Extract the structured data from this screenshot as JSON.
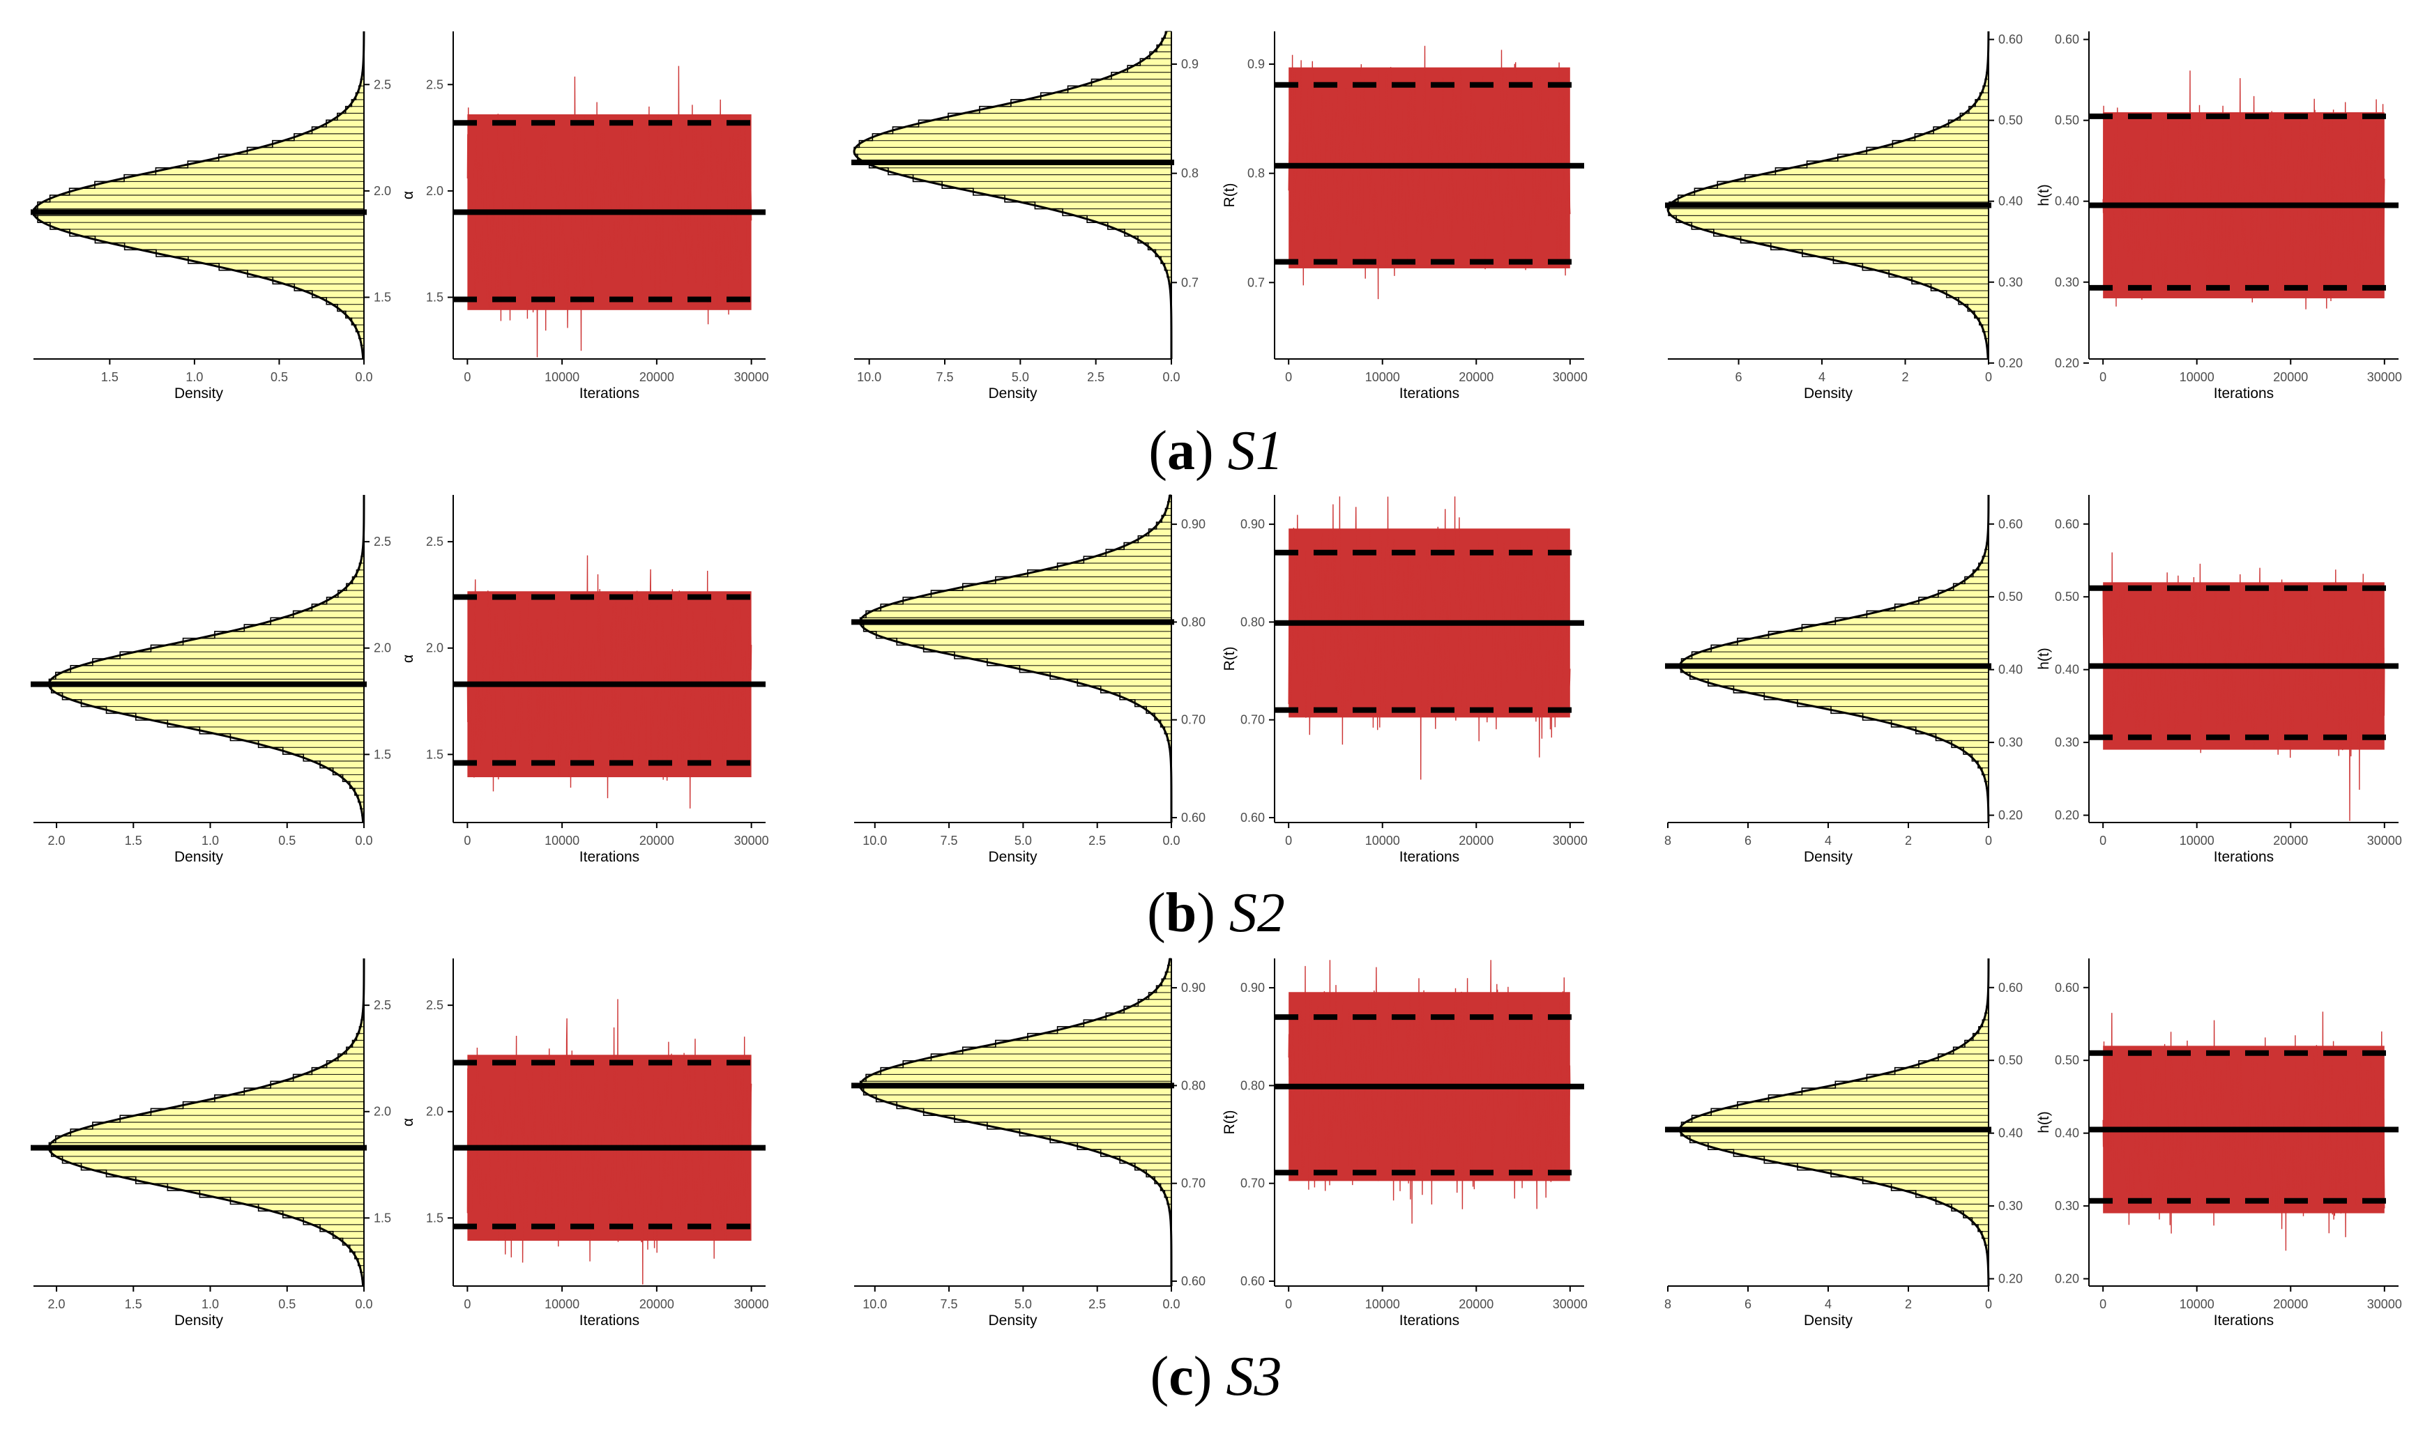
{
  "figure": {
    "captions": [
      {
        "label": "a",
        "scenario": "S1"
      },
      {
        "label": "b",
        "scenario": "S2"
      },
      {
        "label": "c",
        "scenario": "S3"
      }
    ]
  },
  "colors": {
    "histogram_fill": "#FFFFA8",
    "trace_line": "#CC3333",
    "reference_line": "#000000",
    "axis": "#000000"
  },
  "chart_data": [
    {
      "type": "histogram",
      "row": "a",
      "parameter": "alpha",
      "orientation": "horizontal",
      "xlabel": "Density",
      "ylabel": "",
      "ylim": [
        1.21,
        2.75
      ],
      "xlim": [
        1.95,
        0.0
      ],
      "xticks": [
        1.5,
        1.0,
        0.5,
        0.0
      ],
      "yticks": [
        1.5,
        2.0,
        2.5
      ],
      "mode": 1.9,
      "sd": 0.2,
      "peak_density": 1.95,
      "mean": 1.9
    },
    {
      "type": "line",
      "row": "a",
      "parameter": "alpha",
      "xlabel": "Iterations",
      "ylabel": "α",
      "xlim": [
        -1500,
        31500
      ],
      "ylim": [
        1.21,
        2.75
      ],
      "xticks": [
        0,
        10000,
        20000,
        30000
      ],
      "yticks": [
        1.5,
        2.0,
        2.5
      ],
      "center": 1.9,
      "spread": 0.2,
      "n_iterations": 30000,
      "mean": 1.9,
      "lower_bound": 1.49,
      "upper_bound": 2.32
    },
    {
      "type": "histogram",
      "row": "a",
      "parameter": "R(t)",
      "orientation": "horizontal",
      "xlabel": "Density",
      "ylabel": "",
      "ylim": [
        0.63,
        0.93
      ],
      "xlim": [
        10.5,
        0.0
      ],
      "xticks": [
        10.0,
        7.5,
        5.0,
        2.5,
        0.0
      ],
      "yticks": [
        0.7,
        0.8,
        0.9
      ],
      "mode": 0.82,
      "sd": 0.038,
      "peak_density": 10.5,
      "mean": 0.81
    },
    {
      "type": "line",
      "row": "a",
      "parameter": "R(t)",
      "xlabel": "Iterations",
      "ylabel": "R(t)",
      "xlim": [
        -1500,
        31500
      ],
      "ylim": [
        0.63,
        0.93
      ],
      "xticks": [
        0,
        10000,
        20000,
        30000
      ],
      "yticks": [
        0.7,
        0.8,
        0.9
      ],
      "center": 0.805,
      "spread": 0.04,
      "n_iterations": 30000,
      "mean": 0.807,
      "lower_bound": 0.719,
      "upper_bound": 0.881
    },
    {
      "type": "histogram",
      "row": "a",
      "parameter": "h(t)",
      "orientation": "horizontal",
      "xlabel": "Density",
      "ylabel": "",
      "ylim": [
        0.205,
        0.61
      ],
      "xlim": [
        7.7,
        0.0
      ],
      "xticks": [
        6,
        4,
        2,
        0
      ],
      "yticks": [
        0.2,
        0.3,
        0.4,
        0.5,
        0.6
      ],
      "mode": 0.39,
      "sd": 0.052,
      "peak_density": 7.7,
      "mean": 0.395
    },
    {
      "type": "line",
      "row": "a",
      "parameter": "h(t)",
      "xlabel": "Iterations",
      "ylabel": "h(t)",
      "xlim": [
        -1500,
        31500
      ],
      "ylim": [
        0.205,
        0.61
      ],
      "xticks": [
        0,
        10000,
        20000,
        30000
      ],
      "yticks": [
        0.2,
        0.3,
        0.4,
        0.5,
        0.6
      ],
      "center": 0.395,
      "spread": 0.05,
      "n_iterations": 30000,
      "mean": 0.395,
      "lower_bound": 0.293,
      "upper_bound": 0.505
    },
    {
      "type": "histogram",
      "row": "b",
      "parameter": "alpha",
      "orientation": "horizontal",
      "xlabel": "Density",
      "ylabel": "",
      "ylim": [
        1.18,
        2.72
      ],
      "xlim": [
        2.15,
        0.0
      ],
      "xticks": [
        2.0,
        1.5,
        1.0,
        0.5,
        0.0
      ],
      "yticks": [
        1.5,
        2.0,
        2.5
      ],
      "mode": 1.83,
      "sd": 0.19,
      "peak_density": 2.05,
      "mean": 1.83
    },
    {
      "type": "line",
      "row": "b",
      "parameter": "alpha",
      "xlabel": "Iterations",
      "ylabel": "α",
      "xlim": [
        -1500,
        31500
      ],
      "ylim": [
        1.18,
        2.72
      ],
      "xticks": [
        0,
        10000,
        20000,
        30000
      ],
      "yticks": [
        1.5,
        2.0,
        2.5
      ],
      "center": 1.83,
      "spread": 0.19,
      "n_iterations": 30000,
      "mean": 1.83,
      "lower_bound": 1.46,
      "upper_bound": 2.24
    },
    {
      "type": "histogram",
      "row": "b",
      "parameter": "R(t)",
      "orientation": "horizontal",
      "xlabel": "Density",
      "ylabel": "",
      "ylim": [
        0.595,
        0.93
      ],
      "xlim": [
        10.7,
        0.0
      ],
      "xticks": [
        10.0,
        7.5,
        5.0,
        2.5,
        0.0
      ],
      "yticks": [
        0.6,
        0.7,
        0.8,
        0.9
      ],
      "mode": 0.8,
      "sd": 0.04,
      "peak_density": 10.5,
      "mean": 0.8
    },
    {
      "type": "line",
      "row": "b",
      "parameter": "R(t)",
      "xlabel": "Iterations",
      "ylabel": "R(t)",
      "xlim": [
        -1500,
        31500
      ],
      "ylim": [
        0.595,
        0.93
      ],
      "xticks": [
        0,
        10000,
        20000,
        30000
      ],
      "yticks": [
        0.6,
        0.7,
        0.8,
        0.9
      ],
      "center": 0.799,
      "spread": 0.042,
      "n_iterations": 30000,
      "mean": 0.799,
      "lower_bound": 0.71,
      "upper_bound": 0.871
    },
    {
      "type": "histogram",
      "row": "b",
      "parameter": "h(t)",
      "orientation": "horizontal",
      "xlabel": "Density",
      "ylabel": "",
      "ylim": [
        0.19,
        0.64
      ],
      "xlim": [
        8.0,
        0.0
      ],
      "xticks": [
        8,
        6,
        4,
        2,
        0
      ],
      "yticks": [
        0.2,
        0.3,
        0.4,
        0.5,
        0.6
      ],
      "mode": 0.405,
      "sd": 0.052,
      "peak_density": 7.7,
      "mean": 0.405
    },
    {
      "type": "line",
      "row": "b",
      "parameter": "h(t)",
      "xlabel": "Iterations",
      "ylabel": "h(t)",
      "xlim": [
        -1500,
        31500
      ],
      "ylim": [
        0.19,
        0.64
      ],
      "xticks": [
        0,
        10000,
        20000,
        30000
      ],
      "yticks": [
        0.2,
        0.3,
        0.4,
        0.5,
        0.6
      ],
      "center": 0.405,
      "spread": 0.05,
      "n_iterations": 30000,
      "mean": 0.405,
      "lower_bound": 0.307,
      "upper_bound": 0.512
    },
    {
      "type": "histogram",
      "row": "c",
      "parameter": "alpha",
      "orientation": "horizontal",
      "xlabel": "Density",
      "ylabel": "",
      "ylim": [
        1.18,
        2.72
      ],
      "xlim": [
        2.15,
        0.0
      ],
      "xticks": [
        2.0,
        1.5,
        1.0,
        0.5,
        0.0
      ],
      "yticks": [
        1.5,
        2.0,
        2.5
      ],
      "mode": 1.83,
      "sd": 0.19,
      "peak_density": 2.05,
      "mean": 1.83
    },
    {
      "type": "line",
      "row": "c",
      "parameter": "alpha",
      "xlabel": "Iterations",
      "ylabel": "α",
      "xlim": [
        -1500,
        31500
      ],
      "ylim": [
        1.18,
        2.72
      ],
      "xticks": [
        0,
        10000,
        20000,
        30000
      ],
      "yticks": [
        1.5,
        2.0,
        2.5
      ],
      "center": 1.83,
      "spread": 0.19,
      "n_iterations": 30000,
      "mean": 1.83,
      "lower_bound": 1.46,
      "upper_bound": 2.23
    },
    {
      "type": "histogram",
      "row": "c",
      "parameter": "R(t)",
      "orientation": "horizontal",
      "xlabel": "Density",
      "ylabel": "",
      "ylim": [
        0.595,
        0.93
      ],
      "xlim": [
        10.7,
        0.0
      ],
      "xticks": [
        10.0,
        7.5,
        5.0,
        2.5,
        0.0
      ],
      "yticks": [
        0.6,
        0.7,
        0.8,
        0.9
      ],
      "mode": 0.8,
      "sd": 0.04,
      "peak_density": 10.5,
      "mean": 0.8
    },
    {
      "type": "line",
      "row": "c",
      "parameter": "R(t)",
      "xlabel": "Iterations",
      "ylabel": "R(t)",
      "xlim": [
        -1500,
        31500
      ],
      "ylim": [
        0.595,
        0.93
      ],
      "xticks": [
        0,
        10000,
        20000,
        30000
      ],
      "yticks": [
        0.6,
        0.7,
        0.8,
        0.9
      ],
      "center": 0.799,
      "spread": 0.042,
      "n_iterations": 30000,
      "mean": 0.799,
      "lower_bound": 0.711,
      "upper_bound": 0.87
    },
    {
      "type": "histogram",
      "row": "c",
      "parameter": "h(t)",
      "orientation": "horizontal",
      "xlabel": "Density",
      "ylabel": "",
      "ylim": [
        0.19,
        0.64
      ],
      "xlim": [
        8.0,
        0.0
      ],
      "xticks": [
        8,
        6,
        4,
        2,
        0
      ],
      "yticks": [
        0.2,
        0.3,
        0.4,
        0.5,
        0.6
      ],
      "mode": 0.405,
      "sd": 0.052,
      "peak_density": 7.7,
      "mean": 0.405
    },
    {
      "type": "line",
      "row": "c",
      "parameter": "h(t)",
      "xlabel": "Iterations",
      "ylabel": "h(t)",
      "xlim": [
        -1500,
        31500
      ],
      "ylim": [
        0.19,
        0.64
      ],
      "xticks": [
        0,
        10000,
        20000,
        30000
      ],
      "yticks": [
        0.2,
        0.3,
        0.4,
        0.5,
        0.6
      ],
      "center": 0.405,
      "spread": 0.05,
      "n_iterations": 30000,
      "mean": 0.405,
      "lower_bound": 0.307,
      "upper_bound": 0.51
    }
  ]
}
